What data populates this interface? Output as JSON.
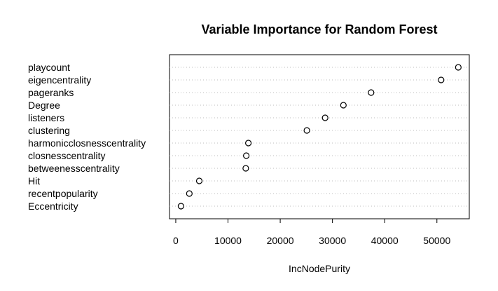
{
  "chart_data": {
    "type": "scatter",
    "title": "Variable Importance for Random Forest",
    "xlabel": "IncNodePurity",
    "ylabel": "",
    "xlim": [
      -1200,
      56200
    ],
    "xticks": [
      0,
      10000,
      20000,
      30000,
      40000,
      50000
    ],
    "xtick_labels": [
      "0",
      "10000",
      "20000",
      "30000",
      "40000",
      "50000"
    ],
    "grid": "dotted horizontal lines at each variable",
    "categories": [
      "playcount",
      "eigencentrality",
      "pageranks",
      "Degree",
      "listeners",
      "clustering",
      "harmonicclosnesscentrality",
      "closnesscentrality",
      "betweenesscentrality",
      "Hit",
      "recentpopularity",
      "Eccentricity"
    ],
    "values": [
      54100,
      50800,
      37400,
      32100,
      28600,
      25100,
      13900,
      13500,
      13400,
      4500,
      2600,
      1000
    ],
    "colors": {
      "background": "#ffffff",
      "axis": "#000000",
      "grid": "#bdbdbd",
      "point_stroke": "#000000",
      "point_fill": "#ffffff"
    }
  }
}
